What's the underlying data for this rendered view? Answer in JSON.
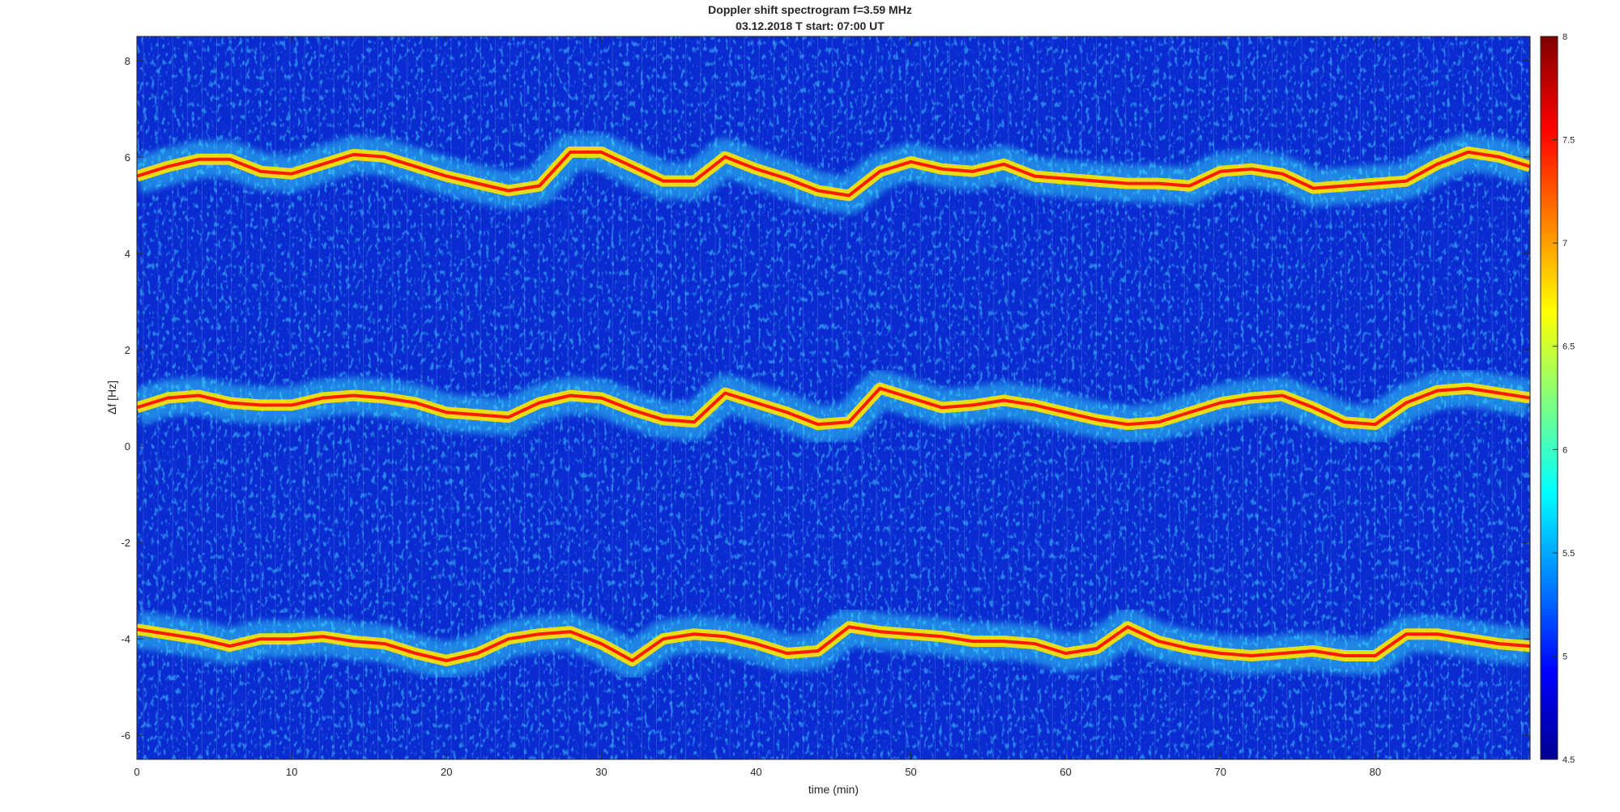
{
  "chart_data": {
    "type": "heatmap",
    "title": "Doppler shift spectrogram f=3.59 MHz",
    "subtitle": "03.12.2018    T start: 07:00 UT",
    "xlabel": "time (min)",
    "ylabel": "Δf [Hz]",
    "xlim": [
      0,
      90
    ],
    "ylim": [
      -6.5,
      8.5
    ],
    "x_ticks": [
      "0",
      "10",
      "20",
      "30",
      "40",
      "50",
      "60",
      "70",
      "80"
    ],
    "x_tick_values": [
      0,
      10,
      20,
      30,
      40,
      50,
      60,
      70,
      80
    ],
    "y_ticks": [
      "8",
      "6",
      "4",
      "2",
      "0",
      "-2",
      "-4",
      "-6"
    ],
    "y_tick_values": [
      8,
      6,
      4,
      2,
      0,
      -2,
      -4,
      -6
    ],
    "colorbar": {
      "range": [
        4.5,
        8
      ],
      "ticks": [
        "8",
        "7.5",
        "7",
        "6.5",
        "6",
        "5.5",
        "5",
        "4.5"
      ],
      "tick_values": [
        8,
        7.5,
        7,
        6.5,
        6,
        5.5,
        5,
        4.5
      ],
      "colormap": "jet"
    },
    "series": [
      {
        "x": [
          0,
          2,
          4,
          6,
          8,
          10,
          12,
          14,
          16,
          18,
          20,
          22,
          24,
          26,
          28,
          30,
          32,
          34,
          36,
          38,
          40,
          42,
          44,
          46,
          48,
          50,
          52,
          54,
          56,
          58,
          60,
          62,
          64,
          66,
          68,
          70,
          72,
          74,
          76,
          78,
          80,
          82,
          84,
          86,
          88,
          90
        ],
        "y": [
          5.6,
          5.8,
          5.95,
          5.95,
          5.7,
          5.65,
          5.85,
          6.05,
          6.0,
          5.8,
          5.6,
          5.45,
          5.3,
          5.4,
          6.1,
          6.1,
          5.8,
          5.5,
          5.5,
          6.0,
          5.75,
          5.55,
          5.3,
          5.2,
          5.7,
          5.9,
          5.75,
          5.7,
          5.85,
          5.6,
          5.55,
          5.5,
          5.45,
          5.45,
          5.4,
          5.7,
          5.75,
          5.65,
          5.35,
          5.4,
          5.45,
          5.5,
          5.85,
          6.1,
          6.0,
          5.8
        ]
      },
      {
        "x": [
          0,
          2,
          4,
          6,
          8,
          10,
          12,
          14,
          16,
          18,
          20,
          22,
          24,
          26,
          28,
          30,
          32,
          34,
          36,
          38,
          40,
          42,
          44,
          46,
          48,
          50,
          52,
          54,
          56,
          58,
          60,
          62,
          64,
          66,
          68,
          70,
          72,
          74,
          76,
          78,
          80,
          82,
          84,
          86,
          88,
          90
        ],
        "y": [
          0.8,
          1.0,
          1.05,
          0.9,
          0.85,
          0.85,
          1.0,
          1.05,
          1.0,
          0.9,
          0.7,
          0.65,
          0.6,
          0.9,
          1.05,
          1.0,
          0.75,
          0.55,
          0.5,
          1.1,
          0.9,
          0.7,
          0.45,
          0.5,
          1.2,
          1.0,
          0.8,
          0.85,
          0.95,
          0.85,
          0.7,
          0.55,
          0.45,
          0.5,
          0.7,
          0.9,
          1.0,
          1.05,
          0.8,
          0.5,
          0.45,
          0.9,
          1.15,
          1.2,
          1.1,
          1.0
        ]
      },
      {
        "x": [
          0,
          2,
          4,
          6,
          8,
          10,
          12,
          14,
          16,
          18,
          20,
          22,
          24,
          26,
          28,
          30,
          32,
          34,
          36,
          38,
          40,
          42,
          44,
          46,
          48,
          50,
          52,
          54,
          56,
          58,
          60,
          62,
          64,
          66,
          68,
          70,
          72,
          74,
          76,
          78,
          80,
          82,
          84,
          86,
          88,
          90
        ],
        "y": [
          -3.8,
          -3.9,
          -4.0,
          -4.15,
          -4.0,
          -4.0,
          -3.95,
          -4.05,
          -4.1,
          -4.3,
          -4.45,
          -4.3,
          -4.0,
          -3.9,
          -3.85,
          -4.1,
          -4.45,
          -4.0,
          -3.9,
          -3.95,
          -4.1,
          -4.3,
          -4.25,
          -3.75,
          -3.85,
          -3.9,
          -3.95,
          -4.05,
          -4.05,
          -4.1,
          -4.3,
          -4.2,
          -3.75,
          -4.05,
          -4.2,
          -4.3,
          -4.35,
          -4.3,
          -4.25,
          -4.35,
          -4.35,
          -3.9,
          -3.9,
          -4.0,
          -4.1,
          -4.15
        ]
      }
    ]
  }
}
